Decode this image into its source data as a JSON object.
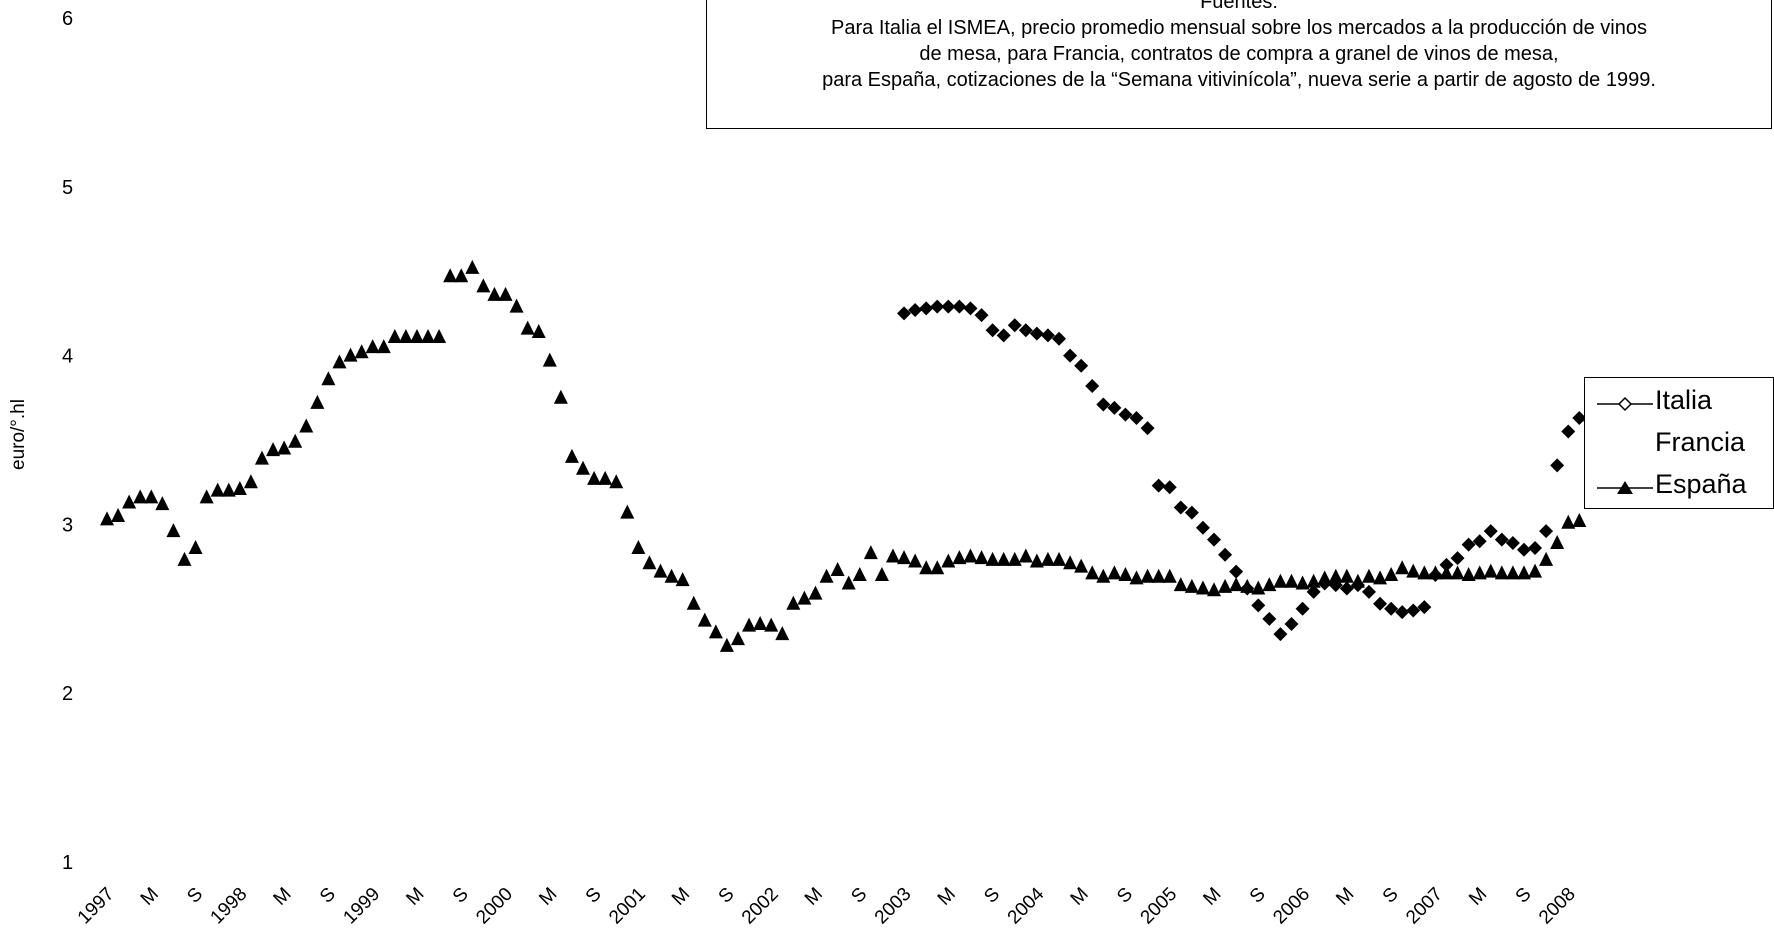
{
  "note": {
    "heading": "Fuentes:",
    "lines": [
      "Para Italia el ISMEA, precio promedio mensual sobre los mercados a la producción de vinos",
      "de mesa, para Francia, contratos de compra a granel de vinos de mesa,",
      "para España, cotizaciones de la “Semana vitivinícola”, nueva serie a partir de agosto de 1999."
    ]
  },
  "chart_data": {
    "type": "scatter",
    "ylabel": "euro/°.hl",
    "ylim": [
      1,
      6
    ],
    "yticks": [
      "1",
      "2",
      "3",
      "4",
      "5",
      "6"
    ],
    "x_tick_labels": [
      "1997",
      "M",
      "S",
      "1998",
      "M",
      "S",
      "1999",
      "M",
      "S",
      "2000",
      "M",
      "S",
      "2001",
      "M",
      "S",
      "2002",
      "M",
      "S",
      "2003",
      "M",
      "S",
      "2004",
      "M",
      "S",
      "2005",
      "M",
      "S",
      "2006",
      "M",
      "S",
      "2007",
      "M",
      "S",
      "2008"
    ],
    "x_start_month": "1997-01",
    "grid": false,
    "legend_position": "right",
    "series": [
      {
        "name": "Italia",
        "marker": "diamond",
        "color": "#000000",
        "values": [
          null,
          null,
          null,
          null,
          null,
          null,
          null,
          null,
          null,
          null,
          null,
          null,
          null,
          null,
          null,
          null,
          null,
          null,
          null,
          null,
          null,
          null,
          null,
          null,
          null,
          null,
          null,
          null,
          null,
          null,
          null,
          null,
          null,
          null,
          null,
          null,
          null,
          null,
          null,
          null,
          null,
          null,
          null,
          null,
          null,
          null,
          null,
          null,
          null,
          null,
          null,
          null,
          null,
          null,
          null,
          null,
          null,
          null,
          null,
          null,
          null,
          null,
          null,
          null,
          null,
          null,
          null,
          null,
          null,
          null,
          null,
          null,
          4.25,
          4.27,
          4.28,
          4.29,
          4.29,
          4.29,
          4.28,
          4.24,
          4.15,
          4.12,
          4.18,
          4.15,
          4.13,
          4.12,
          4.1,
          4.0,
          3.94,
          3.82,
          3.71,
          3.69,
          3.65,
          3.63,
          3.57,
          3.23,
          3.22,
          3.1,
          3.07,
          2.98,
          2.91,
          2.82,
          2.72,
          2.62,
          2.52,
          2.44,
          2.35,
          2.41,
          2.5,
          2.6,
          2.65,
          2.64,
          2.62,
          2.64,
          2.6,
          2.53,
          2.5,
          2.48,
          2.49,
          2.51,
          2.7,
          2.76,
          2.8,
          2.88,
          2.9,
          2.96,
          2.91,
          2.89,
          2.85,
          2.86,
          2.96,
          3.35,
          3.55,
          3.63,
          3.61
        ]
      },
      {
        "name": "Francia",
        "marker": "none",
        "color": "#000000",
        "values": []
      },
      {
        "name": "España",
        "marker": "triangle",
        "color": "#000000",
        "values": [
          3.03,
          3.05,
          3.13,
          3.16,
          3.16,
          3.12,
          2.96,
          2.79,
          2.86,
          3.16,
          3.2,
          3.2,
          3.21,
          3.25,
          3.39,
          3.44,
          3.45,
          3.49,
          3.58,
          3.72,
          3.86,
          3.96,
          4.0,
          4.02,
          4.05,
          4.05,
          4.11,
          4.11,
          4.11,
          4.11,
          4.11,
          4.47,
          4.47,
          4.52,
          4.41,
          4.36,
          4.36,
          4.29,
          4.16,
          4.14,
          3.97,
          3.75,
          3.4,
          3.33,
          3.27,
          3.27,
          3.25,
          3.07,
          2.86,
          2.77,
          2.72,
          2.69,
          2.67,
          2.53,
          2.43,
          2.36,
          2.28,
          2.32,
          2.4,
          2.41,
          2.4,
          2.35,
          2.53,
          2.56,
          2.59,
          2.69,
          2.73,
          2.65,
          2.7,
          2.83,
          2.7,
          2.81,
          2.8,
          2.78,
          2.74,
          2.74,
          2.78,
          2.8,
          2.81,
          2.8,
          2.79,
          2.79,
          2.79,
          2.81,
          2.78,
          2.79,
          2.79,
          2.77,
          2.75,
          2.71,
          2.69,
          2.71,
          2.7,
          2.68,
          2.69,
          2.69,
          2.69,
          2.64,
          2.63,
          2.62,
          2.61,
          2.63,
          2.64,
          2.63,
          2.62,
          2.64,
          2.66,
          2.66,
          2.65,
          2.66,
          2.68,
          2.69,
          2.69,
          2.66,
          2.69,
          2.68,
          2.7,
          2.74,
          2.72,
          2.71,
          2.71,
          2.71,
          2.71,
          2.7,
          2.71,
          2.72,
          2.71,
          2.71,
          2.71,
          2.72,
          2.79,
          2.89,
          3.01,
          3.02
        ]
      }
    ]
  }
}
